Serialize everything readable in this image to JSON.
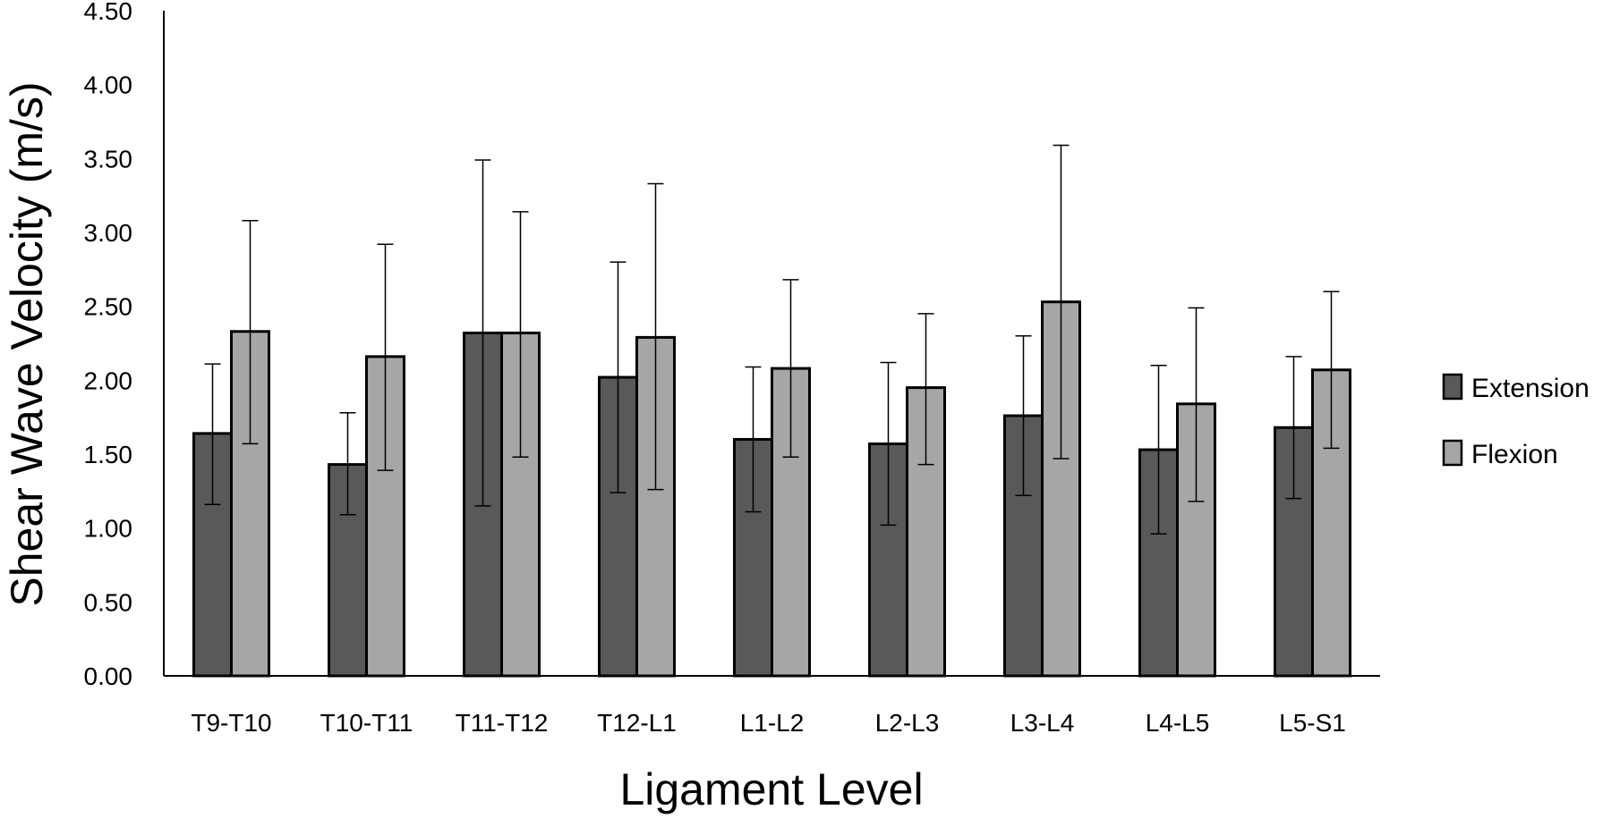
{
  "chart_data": {
    "type": "bar",
    "title": "",
    "xlabel": "Ligament Level",
    "ylabel": "Shear Wave Velocity (m/s)",
    "ylim": [
      0,
      4.5
    ],
    "yticks": [
      "0.00",
      "0.50",
      "1.00",
      "1.50",
      "2.00",
      "2.50",
      "3.00",
      "3.50",
      "4.00",
      "4.50"
    ],
    "grid": false,
    "legend_position": "right",
    "categories": [
      "T9-T10",
      "T10-T11",
      "T11-T12",
      "T12-L1",
      "L1-L2",
      "L2-L3",
      "L3-L4",
      "L4-L5",
      "L5-S1"
    ],
    "series": [
      {
        "name": "Extension",
        "color": "#595959",
        "values": [
          1.64,
          1.43,
          2.32,
          2.02,
          1.6,
          1.57,
          1.76,
          1.53,
          1.68
        ],
        "error_low": [
          1.16,
          1.09,
          1.15,
          1.24,
          1.11,
          1.02,
          1.22,
          0.96,
          1.2
        ],
        "error_high": [
          2.11,
          1.78,
          3.49,
          2.8,
          2.09,
          2.12,
          2.3,
          2.1,
          2.16
        ]
      },
      {
        "name": "Flexion",
        "color": "#a6a6a6",
        "values": [
          2.33,
          2.16,
          2.32,
          2.29,
          2.08,
          1.95,
          2.53,
          1.84,
          2.07
        ],
        "error_low": [
          1.57,
          1.39,
          1.48,
          1.26,
          1.48,
          1.43,
          1.47,
          1.18,
          1.54
        ],
        "error_high": [
          3.08,
          2.92,
          3.14,
          3.33,
          2.68,
          2.45,
          3.59,
          2.49,
          2.6
        ]
      }
    ]
  }
}
